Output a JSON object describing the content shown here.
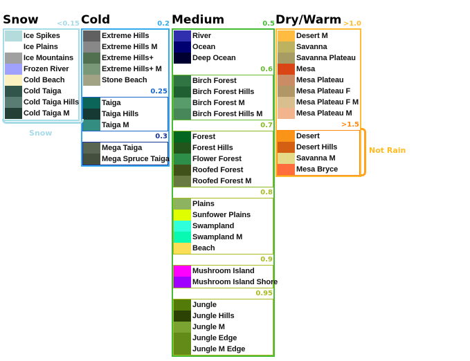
{
  "columns": [
    {
      "title": "Snow",
      "color": "#a6dbe8",
      "sections": [
        {
          "threshold": "<0.15",
          "color": "#a6dbe8",
          "biomes": [
            {
              "name": "Ice Spikes",
              "color": "#b4dcdc"
            },
            {
              "name": "Ice Plains",
              "color": "#ffffff"
            },
            {
              "name": "Ice Mountains",
              "color": "#a0a0a0"
            },
            {
              "name": "Frozen River",
              "color": "#a0a0ff"
            },
            {
              "name": "Cold Beach",
              "color": "#faf0c0"
            },
            {
              "name": "Cold Taiga",
              "color": "#31554a"
            },
            {
              "name": "Cold Taiga Hills",
              "color": "#597d72"
            },
            {
              "name": "Cold Taiga M",
              "color": "#243f36"
            }
          ]
        }
      ]
    },
    {
      "title": "Cold",
      "color": "#33aaee",
      "sections": [
        {
          "threshold": "0.2",
          "color": "#33aaee",
          "biomes": [
            {
              "name": "Extreme Hills",
              "color": "#606060"
            },
            {
              "name": "Extreme Hills M",
              "color": "#888888"
            },
            {
              "name": "Extreme Hills+",
              "color": "#507050"
            },
            {
              "name": "Extreme Hills+ M",
              "color": "#789878"
            },
            {
              "name": "Stone Beach",
              "color": "#a2a284"
            }
          ]
        },
        {
          "threshold": "0.25",
          "color": "#1a66cc",
          "biomes": [
            {
              "name": "Taiga",
              "color": "#0b6659"
            },
            {
              "name": "Taiga Hills",
              "color": "#163933"
            },
            {
              "name": "Taiga M",
              "color": "#338e81"
            }
          ]
        },
        {
          "threshold": "0.3",
          "color": "#1a3399",
          "biomes": [
            {
              "name": "Mega Taiga",
              "color": "#596651"
            },
            {
              "name": "Mega Spruce Taiga",
              "color": "#454f3e"
            }
          ]
        }
      ]
    },
    {
      "title": "Medium",
      "color": "#44bb33",
      "sections": [
        {
          "threshold": "0.5",
          "color": "#44bb33",
          "biomes": [
            {
              "name": "River",
              "color": "#3030af"
            },
            {
              "name": "Ocean",
              "color": "#000070"
            },
            {
              "name": "Deep Ocean",
              "color": "#000030"
            }
          ]
        },
        {
          "threshold": "0.6",
          "color": "#66bb33",
          "biomes": [
            {
              "name": "Birch Forest",
              "color": "#307444"
            },
            {
              "name": "Birch Forest Hills",
              "color": "#1f5f32"
            },
            {
              "name": "Birch Forest M",
              "color": "#589c6c"
            },
            {
              "name": "Birch Forest Hills M",
              "color": "#47875a"
            }
          ]
        },
        {
          "threshold": "0.7",
          "color": "#88bb22",
          "biomes": [
            {
              "name": "Forest",
              "color": "#056621"
            },
            {
              "name": "Forest Hills",
              "color": "#22551c"
            },
            {
              "name": "Flower Forest",
              "color": "#2d8e49"
            },
            {
              "name": "Roofed Forest",
              "color": "#40511a"
            },
            {
              "name": "Roofed Forest M",
              "color": "#687942"
            }
          ]
        },
        {
          "threshold": "0.8",
          "color": "#aabb22",
          "biomes": [
            {
              "name": "Plains",
              "color": "#8db360"
            },
            {
              "name": "Sunfower Plains",
              "color": "#dfff00"
            },
            {
              "name": "Swampland",
              "color": "#2fffda"
            },
            {
              "name": "Swampland M",
              "color": "#07f9b2"
            },
            {
              "name": "Beach",
              "color": "#fade55"
            }
          ]
        },
        {
          "threshold": "0.9",
          "color": "#aabb22",
          "biomes": [
            {
              "name": "Mushroom Island",
              "color": "#ff00ff"
            },
            {
              "name": "Mushroom Island Shore",
              "color": "#a000ff"
            }
          ]
        },
        {
          "threshold": "0.95",
          "color": "#aabb22",
          "biomes": [
            {
              "name": "Jungle",
              "color": "#537b09"
            },
            {
              "name": "Jungle Hills",
              "color": "#2c4205"
            },
            {
              "name": "Jungle M",
              "color": "#7ba331"
            },
            {
              "name": "Jungle Edge",
              "color": "#628b17"
            },
            {
              "name": "Jungle M Edge",
              "color": "#628b17"
            }
          ]
        }
      ]
    },
    {
      "title": "Dry/Warm",
      "color": "#ffbb33",
      "sections": [
        {
          "threshold": ">1.0",
          "color": "#ffbb33",
          "biomes": [
            {
              "name": "Desert M",
              "color": "#ffbc40"
            },
            {
              "name": "Savanna",
              "color": "#bdb25f"
            },
            {
              "name": "Savanna Plateau",
              "color": "#a79d64"
            },
            {
              "name": "Mesa",
              "color": "#d94515"
            },
            {
              "name": "Mesa Plateau",
              "color": "#ca8c65"
            },
            {
              "name": "Mesa Plateau F",
              "color": "#b09765"
            },
            {
              "name": "Mesa Plateau F M",
              "color": "#d8bf8d"
            },
            {
              "name": "Mesa Plateau M",
              "color": "#f2b48d"
            }
          ]
        },
        {
          "threshold": ">1.5",
          "color": "#ff8811",
          "biomes": [
            {
              "name": "Desert",
              "color": "#fa9418"
            },
            {
              "name": "Desert Hills",
              "color": "#d25f12"
            },
            {
              "name": "Savanna M",
              "color": "#e5da87"
            },
            {
              "name": "Mesa Bryce",
              "color": "#ff6d3d"
            }
          ]
        }
      ]
    }
  ],
  "notes": {
    "snow_label": "Snow",
    "snow_color": "#a8dbe8",
    "not_rain_label": "Not Rain",
    "not_rain_color": "#ffbb22"
  }
}
